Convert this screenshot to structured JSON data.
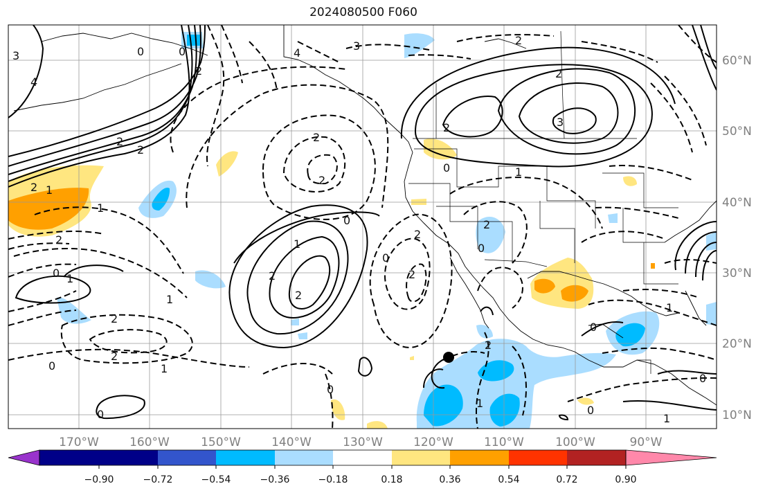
{
  "title": "2024080500 F060",
  "map": {
    "lon_labels": [
      "170°W",
      "160°W",
      "150°W",
      "140°W",
      "130°W",
      "120°W",
      "110°W",
      "100°W",
      "90°W"
    ],
    "lat_labels": [
      "60°N",
      "50°N",
      "40°N",
      "30°N",
      "20°N",
      "10°N"
    ]
  },
  "contour_labels": [
    "3",
    "4",
    "0",
    "0",
    "2",
    "4",
    "2",
    "3",
    "2",
    "2",
    "2",
    "2",
    "1",
    "1",
    "1",
    "1",
    "2",
    "2",
    "0",
    "0",
    "2",
    "2",
    "1",
    "3",
    "2",
    "2",
    "0",
    "0",
    "2",
    "1",
    "0",
    "0",
    "1",
    "2",
    "1",
    "2",
    "0",
    "2",
    "2",
    "0",
    "1",
    "2",
    "0",
    "0",
    "0",
    "1"
  ],
  "colorbar": {
    "ticks": [
      "−0.90",
      "−0.72",
      "−0.54",
      "−0.36",
      "−0.18",
      "0.18",
      "0.36",
      "0.54",
      "0.72",
      "0.90"
    ],
    "under_color": "#9933cc",
    "over_color": "#ff88aa",
    "colors": [
      "#000088",
      "#3355cc",
      "#00bbff",
      "#aaddff",
      "#ffffff",
      "#ffe680",
      "#ffa000",
      "#ff3300",
      "#b22222"
    ]
  },
  "palette": {
    "light_blue": "#aaddff",
    "blue": "#00bbff",
    "yellow": "#ffe680",
    "orange": "#ffa000"
  }
}
